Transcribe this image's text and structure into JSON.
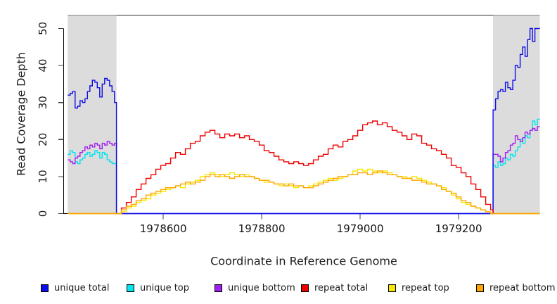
{
  "figure": {
    "ylabel": "Read Coverage Depth",
    "xlabel": "Coordinate in Reference Genome"
  },
  "legend": [
    {
      "label": "unique total",
      "color": "#0D0DE8"
    },
    {
      "label": "unique top",
      "color": "#00E5EE"
    },
    {
      "label": "unique bottom",
      "color": "#A020F0"
    },
    {
      "label": "repeat total",
      "color": "#EE0000"
    },
    {
      "label": "repeat top",
      "color": "#F5E800"
    },
    {
      "label": "repeat bottom",
      "color": "#FFA500"
    }
  ],
  "chart_data": {
    "type": "line",
    "step": true,
    "title": "",
    "xlabel": "Coordinate in Reference Genome",
    "ylabel": "Read Coverage Depth",
    "xlim": [
      1978406,
      1979365
    ],
    "ylim": [
      0,
      53.5
    ],
    "grid": false,
    "legend_position": "bottom",
    "x_ticks": [
      {
        "v": 1978600,
        "label": "1978600"
      },
      {
        "v": 1978800,
        "label": "1978800"
      },
      {
        "v": 1979000,
        "label": "1979000"
      },
      {
        "v": 1979200,
        "label": "1979200"
      }
    ],
    "y_ticks": [
      {
        "v": 0,
        "label": "0"
      },
      {
        "v": 10,
        "label": "10"
      },
      {
        "v": 20,
        "label": "20"
      },
      {
        "v": 30,
        "label": "30"
      },
      {
        "v": 40,
        "label": "40"
      },
      {
        "v": 50,
        "label": "50"
      }
    ],
    "shaded_regions": [
      {
        "x0": 1978406,
        "x1": 1978505,
        "color": "#DCDCDC"
      },
      {
        "x0": 1979270,
        "x1": 1979365,
        "color": "#DCDCDC"
      }
    ],
    "draw_order": [
      1,
      2,
      0,
      3,
      4,
      5
    ],
    "series": [
      {
        "name": "unique total",
        "color": "#0D0DE8",
        "segments": [
          {
            "x0": 1978406,
            "dx": 5,
            "y": [
              32,
              32.5,
              33,
              28.5,
              29,
              30.5,
              30,
              31,
              33,
              34.5,
              36,
              35.5,
              34,
              31.5,
              35,
              36.5,
              36,
              34.5,
              33,
              30
            ]
          },
          {
            "x0": 1978505,
            "dx": 5,
            "y": [
              0
            ]
          },
          {
            "x0": 1979270,
            "dx": 5,
            "y": [
              28,
              31,
              33,
              33.5,
              33,
              35.5,
              34,
              33.5,
              36,
              40,
              39.5,
              43,
              45,
              42.5,
              47,
              50,
              46.5,
              50,
              50,
              50
            ]
          }
        ]
      },
      {
        "name": "unique top",
        "color": "#00E5EE",
        "segments": [
          {
            "x0": 1978406,
            "dx": 5,
            "y": [
              16,
              17,
              16.5,
              14,
              13.5,
              14.5,
              15,
              16,
              16.5,
              15.5,
              16,
              17,
              16.5,
              15,
              16.5,
              16,
              14.5,
              14,
              13.5,
              13.5
            ]
          },
          {
            "x0": 1978505,
            "dx": 5,
            "y": [
              0
            ]
          },
          {
            "x0": 1979270,
            "dx": 5,
            "y": [
              13,
              12.5,
              14,
              13,
              13.5,
              15,
              14.5,
              16,
              15.5,
              17,
              18,
              20,
              19,
              21,
              20.5,
              22.5,
              25,
              24,
              25.5,
              25.5
            ]
          }
        ]
      },
      {
        "name": "unique bottom",
        "color": "#A020F0",
        "segments": [
          {
            "x0": 1978406,
            "dx": 5,
            "y": [
              14.5,
              14,
              13.5,
              15,
              15.5,
              16.5,
              17,
              18,
              17.5,
              18.5,
              18,
              19,
              18.5,
              17.5,
              19,
              18.5,
              19.5,
              19,
              18.5,
              19
            ]
          },
          {
            "x0": 1978505,
            "dx": 5,
            "y": [
              0
            ]
          },
          {
            "x0": 1979270,
            "dx": 5,
            "y": [
              16,
              16,
              15.5,
              14,
              15,
              16.5,
              17,
              18.5,
              19,
              21,
              20,
              19.5,
              20.5,
              22,
              21.5,
              22.5,
              23,
              22.5,
              23.5,
              23.5
            ]
          }
        ]
      },
      {
        "name": "repeat total",
        "color": "#EE0000",
        "segments": [
          {
            "x0": 1978406,
            "dx": 99,
            "y": [
              0
            ]
          },
          {
            "x0": 1978505,
            "dx": 10,
            "y": [
              0,
              1.5,
              3,
              4.5,
              6.5,
              8,
              9.5,
              10.5,
              12,
              13,
              13.5,
              15,
              16.5,
              16,
              17.5,
              19,
              19.5,
              21,
              22,
              22.5,
              21.5,
              20.5,
              21.5,
              21,
              21.5,
              20.5,
              21,
              20,
              19.5,
              18.5,
              17,
              16.5,
              15.5,
              14.5,
              14,
              13.5,
              14,
              13.5,
              13,
              13.5,
              14.5,
              15.5,
              16,
              17.5,
              18.5,
              18,
              19.5,
              20,
              21,
              22.5,
              24,
              24.5,
              25,
              24,
              24.5,
              23.5,
              22.5,
              22,
              21,
              20,
              21.5,
              21,
              19,
              18.5,
              17.5,
              17,
              16,
              15,
              13,
              12.5,
              11,
              10,
              8,
              6.5,
              4.5,
              2.5,
              1
            ]
          },
          {
            "x0": 1979270,
            "dx": 95,
            "y": [
              0
            ]
          },
          {
            "x0": 1979365,
            "dx": 1,
            "y": [
              0
            ]
          }
        ]
      },
      {
        "name": "repeat top",
        "color": "#F5E800",
        "segments": [
          {
            "x0": 1978406,
            "dx": 99,
            "y": [
              0
            ]
          },
          {
            "x0": 1978505,
            "dx": 10,
            "y": [
              0,
              0.5,
              1.5,
              2,
              3,
              3.5,
              4,
              5,
              5.5,
              6,
              6.5,
              7,
              7.5,
              7,
              8,
              8.5,
              9,
              10,
              10.5,
              11,
              10.5,
              10,
              10.5,
              11,
              10.5,
              10,
              10.5,
              10,
              9.5,
              9,
              8.5,
              8.5,
              8,
              7.5,
              8,
              7.5,
              7,
              7.5,
              7,
              7.5,
              8,
              8.5,
              9,
              9.5,
              9,
              9.5,
              10,
              10.5,
              11.5,
              12,
              11.5,
              12,
              11.5,
              11,
              11.5,
              11,
              10.5,
              10,
              10,
              9.5,
              10,
              9.5,
              9,
              8.5,
              8,
              7.5,
              7,
              6,
              5,
              4,
              3,
              2.5,
              2,
              1.5,
              1,
              0.5,
              0
            ]
          },
          {
            "x0": 1979270,
            "dx": 95,
            "y": [
              0
            ]
          },
          {
            "x0": 1979365,
            "dx": 1,
            "y": [
              0
            ]
          }
        ]
      },
      {
        "name": "repeat bottom",
        "color": "#FFA500",
        "segments": [
          {
            "x0": 1978406,
            "dx": 99,
            "y": [
              0
            ]
          },
          {
            "x0": 1978505,
            "dx": 10,
            "y": [
              0,
              1,
              2,
              2.5,
              3.5,
              4,
              5,
              5.5,
              6,
              6.5,
              7,
              7,
              7.5,
              8,
              8.5,
              8,
              8.5,
              9,
              10,
              10.5,
              10,
              10.5,
              10,
              9.5,
              10,
              10.5,
              10,
              10,
              9.5,
              9,
              9,
              8.5,
              8,
              8,
              7.5,
              8,
              7.5,
              7.5,
              7,
              7,
              7.5,
              8,
              8.5,
              9,
              9.5,
              10,
              10,
              10.5,
              10.5,
              11,
              11,
              10.5,
              11,
              11.5,
              11,
              10.5,
              10.5,
              10,
              9.5,
              9.5,
              9,
              9,
              8.5,
              8,
              8,
              7.5,
              6.5,
              6,
              5.5,
              4.5,
              3.5,
              3,
              2,
              1.5,
              1,
              0.5,
              0
            ]
          },
          {
            "x0": 1979270,
            "dx": 95,
            "y": [
              0
            ]
          },
          {
            "x0": 1979365,
            "dx": 1,
            "y": [
              0
            ]
          }
        ]
      }
    ]
  }
}
